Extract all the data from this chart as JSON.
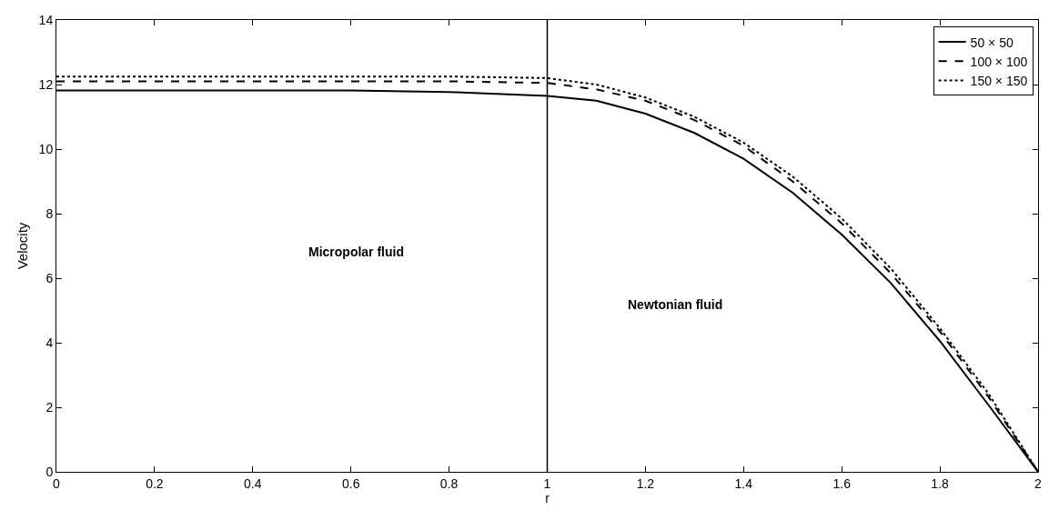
{
  "chart_data": {
    "type": "line",
    "xlabel": "r",
    "ylabel": "Velocity",
    "x": [
      0,
      0.2,
      0.4,
      0.6,
      0.8,
      1.0,
      1.1,
      1.2,
      1.3,
      1.4,
      1.5,
      1.6,
      1.7,
      1.8,
      1.9,
      2.0
    ],
    "series": [
      {
        "name": "50 × 50",
        "color": "#000000",
        "line_style": "solid",
        "values": [
          11.82,
          11.82,
          11.82,
          11.82,
          11.77,
          11.65,
          11.5,
          11.1,
          10.5,
          9.7,
          8.65,
          7.35,
          5.85,
          4.05,
          2.05,
          0
        ]
      },
      {
        "name": "100 × 100",
        "color": "#000000",
        "line_style": "dashed",
        "values": [
          12.1,
          12.1,
          12.1,
          12.1,
          12.1,
          12.05,
          11.85,
          11.5,
          10.9,
          10.1,
          9.0,
          7.7,
          6.15,
          4.35,
          2.3,
          0
        ]
      },
      {
        "name": "150 × 150",
        "color": "#000000",
        "line_style": "dotted",
        "values": [
          12.25,
          12.25,
          12.25,
          12.25,
          12.25,
          12.2,
          12.0,
          11.6,
          11.0,
          10.2,
          9.15,
          7.85,
          6.3,
          4.45,
          2.4,
          0
        ]
      }
    ],
    "xlim": [
      0,
      2
    ],
    "xticks": [
      0,
      0.2,
      0.4,
      0.6,
      0.8,
      1,
      1.2,
      1.4,
      1.6,
      1.8,
      2
    ],
    "ylim": [
      0,
      14
    ],
    "yticks": [
      0,
      2,
      4,
      6,
      8,
      10,
      12,
      14
    ],
    "ref_lines": [
      {
        "axis": "x",
        "value": 1,
        "color": "#000000"
      }
    ],
    "annotations": [
      "Micropolar fluid",
      "Newtonian fluid"
    ],
    "legend": "top right",
    "marker": "none"
  }
}
